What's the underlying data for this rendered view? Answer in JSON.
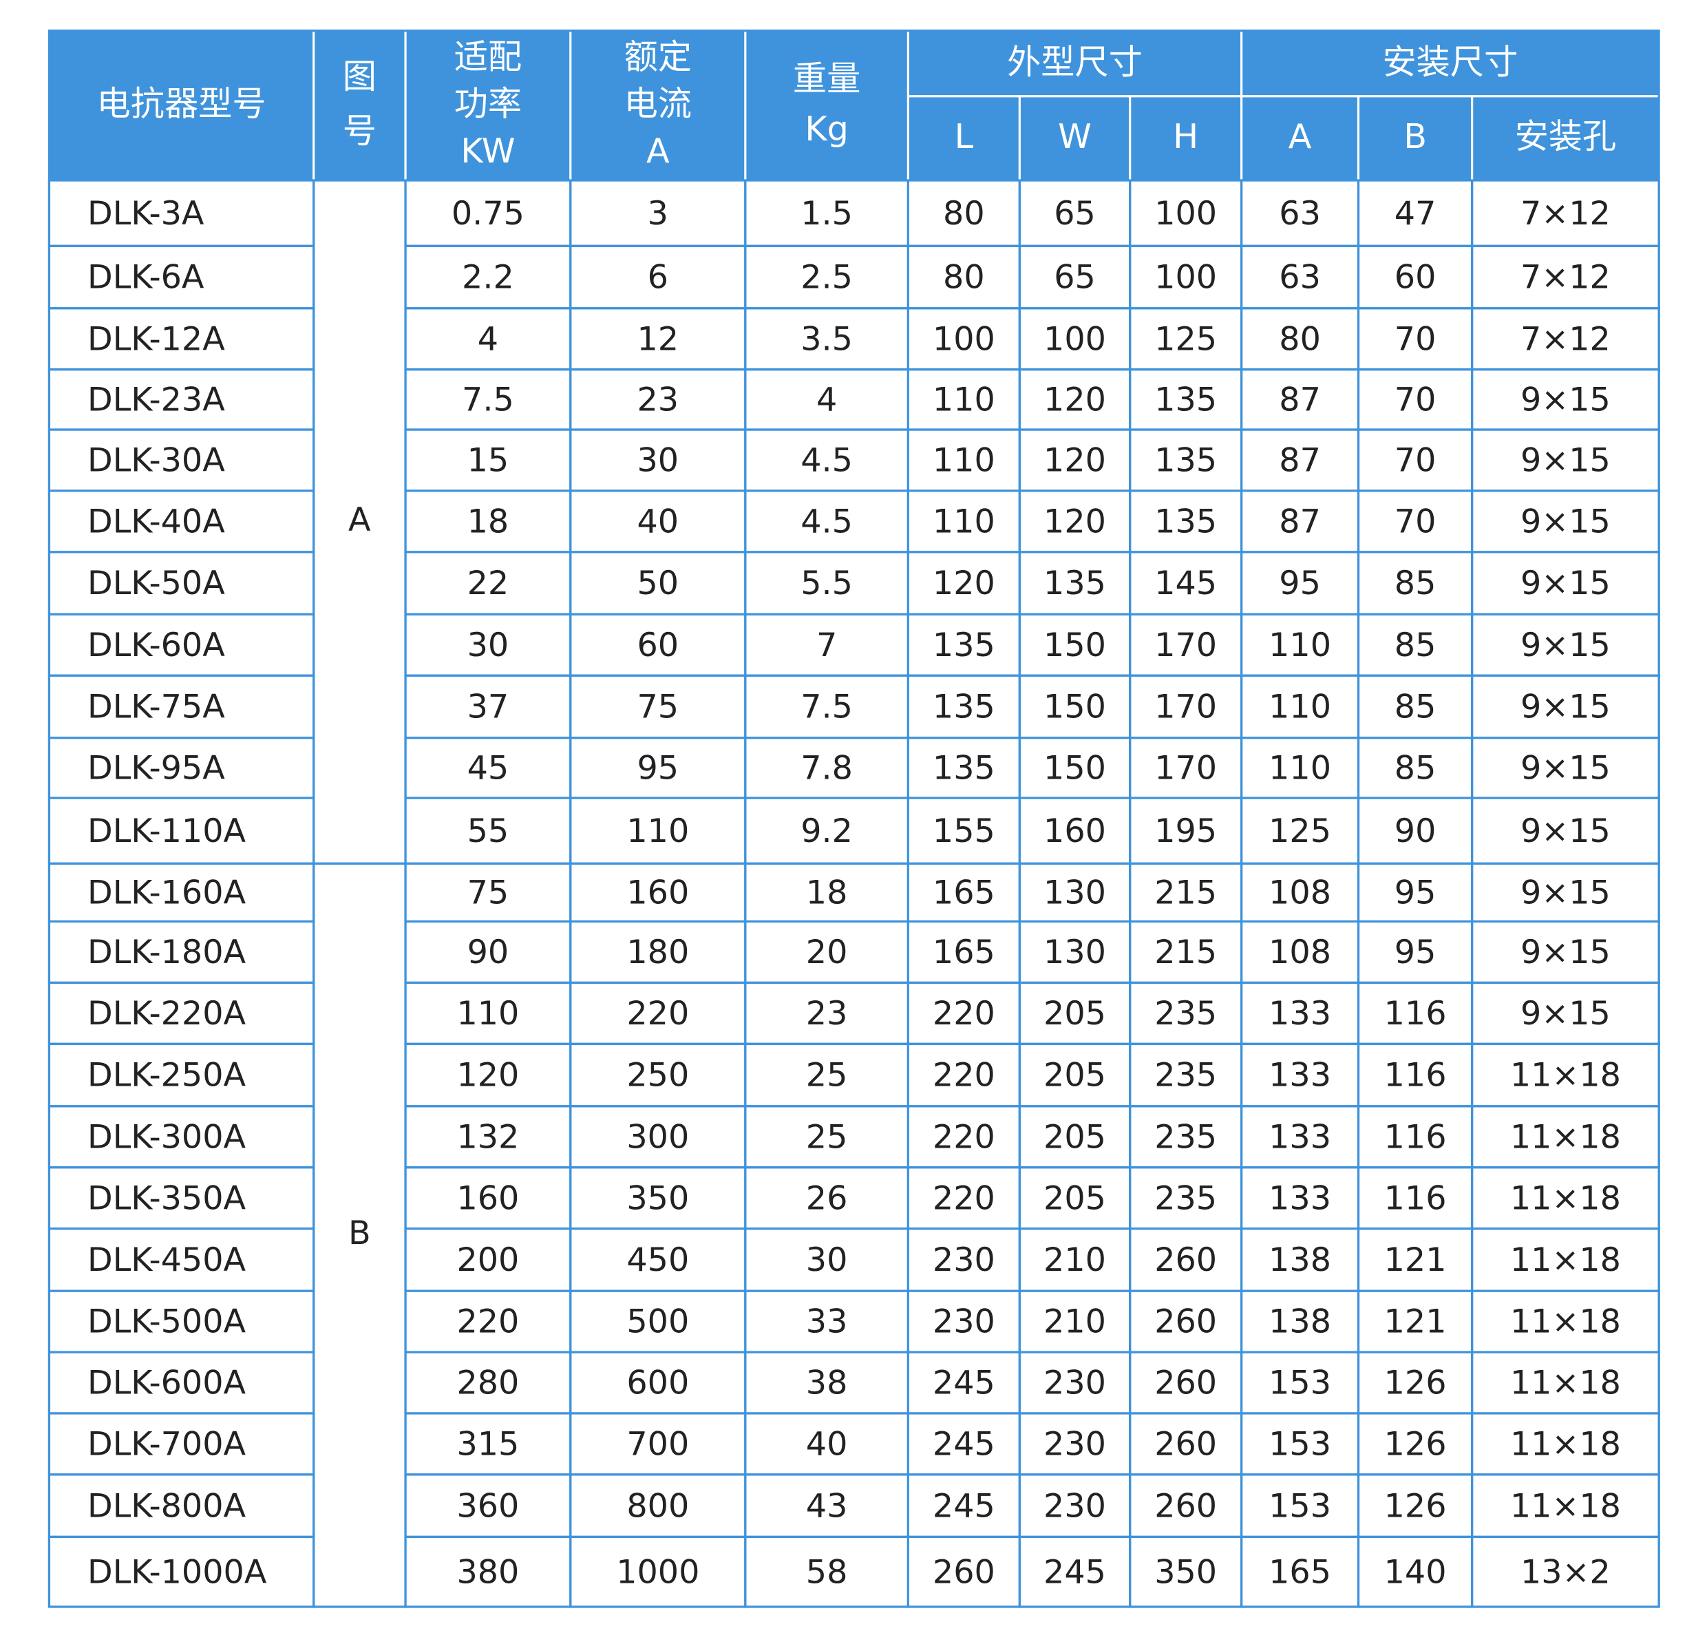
{
  "table": {
    "header": {
      "model": "电抗器型号",
      "figure": [
        "图",
        "号"
      ],
      "power": [
        "适配",
        "功率",
        "KW"
      ],
      "current": [
        "额定",
        "电流",
        "A"
      ],
      "weight": [
        "重量",
        "Kg"
      ],
      "outline": "外型尺寸",
      "install": "安装尺寸",
      "outline_cols": [
        "L",
        "W",
        "H"
      ],
      "install_cols": [
        "A",
        "B",
        "安装孔"
      ]
    },
    "groups": [
      {
        "figure": "A",
        "rows": [
          [
            "DLK-3A",
            0.75,
            3,
            1.5,
            80,
            65,
            100,
            63,
            47,
            "7×12"
          ],
          [
            "DLK-6A",
            2.2,
            6,
            2.5,
            80,
            65,
            100,
            63,
            60,
            "7×12"
          ],
          [
            "DLK-12A",
            4,
            12,
            3.5,
            100,
            100,
            125,
            80,
            70,
            "7×12"
          ],
          [
            "DLK-23A",
            7.5,
            23,
            4,
            110,
            120,
            135,
            87,
            70,
            "9×15"
          ],
          [
            "DLK-30A",
            15,
            30,
            4.5,
            110,
            120,
            135,
            87,
            70,
            "9×15"
          ],
          [
            "DLK-40A",
            18,
            40,
            4.5,
            110,
            120,
            135,
            87,
            70,
            "9×15"
          ],
          [
            "DLK-50A",
            22,
            50,
            5.5,
            120,
            135,
            145,
            95,
            85,
            "9×15"
          ],
          [
            "DLK-60A",
            30,
            60,
            7,
            135,
            150,
            170,
            110,
            85,
            "9×15"
          ],
          [
            "DLK-75A",
            37,
            75,
            7.5,
            135,
            150,
            170,
            110,
            85,
            "9×15"
          ],
          [
            "DLK-95A",
            45,
            95,
            7.8,
            135,
            150,
            170,
            110,
            85,
            "9×15"
          ],
          [
            "DLK-110A",
            55,
            110,
            9.2,
            155,
            160,
            195,
            125,
            90,
            "9×15"
          ]
        ]
      },
      {
        "figure": "B",
        "rows": [
          [
            "DLK-160A",
            75,
            160,
            18,
            165,
            130,
            215,
            108,
            95,
            "9×15"
          ],
          [
            "DLK-180A",
            90,
            180,
            20,
            165,
            130,
            215,
            108,
            95,
            "9×15"
          ],
          [
            "DLK-220A",
            110,
            220,
            23,
            220,
            205,
            235,
            133,
            116,
            "9×15"
          ],
          [
            "DLK-250A",
            120,
            250,
            25,
            220,
            205,
            235,
            133,
            116,
            "11×18"
          ],
          [
            "DLK-300A",
            132,
            300,
            25,
            220,
            205,
            235,
            133,
            116,
            "11×18"
          ],
          [
            "DLK-350A",
            160,
            350,
            26,
            220,
            205,
            235,
            133,
            116,
            "11×18"
          ],
          [
            "DLK-450A",
            200,
            450,
            30,
            230,
            210,
            260,
            138,
            121,
            "11×18"
          ],
          [
            "DLK-500A",
            220,
            500,
            33,
            230,
            210,
            260,
            138,
            121,
            "11×18"
          ],
          [
            "DLK-600A",
            280,
            600,
            38,
            245,
            230,
            260,
            153,
            126,
            "11×18"
          ],
          [
            "DLK-700A",
            315,
            700,
            40,
            245,
            230,
            260,
            153,
            126,
            "11×18"
          ],
          [
            "DLK-800A",
            360,
            800,
            43,
            245,
            230,
            260,
            153,
            126,
            "11×18"
          ],
          [
            "DLK-1000A",
            380,
            1000,
            58,
            260,
            245,
            350,
            165,
            140,
            "13×2"
          ]
        ]
      }
    ]
  }
}
